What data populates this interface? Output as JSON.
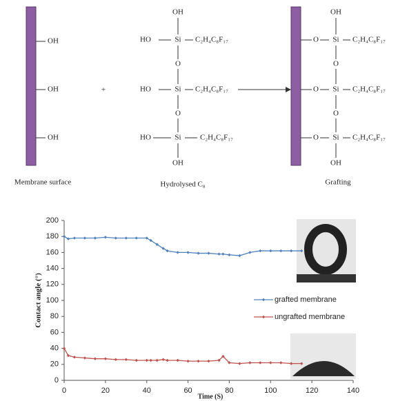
{
  "scheme": {
    "left": {
      "groups": [
        "OH",
        "OH",
        "OH"
      ],
      "label": "Membrane surface"
    },
    "plus": "+",
    "middle": {
      "top": "OH",
      "bottom": "OH",
      "bridges": [
        "O",
        "O"
      ],
      "rows": [
        {
          "end": "HO",
          "si": "Si",
          "chain": "C₂H₄C₈F₁₇"
        },
        {
          "end": "HO",
          "si": "Si",
          "chain": "C₂H₄C₈F₁₇"
        },
        {
          "end": "HO",
          "si": "Si",
          "chain": "C₂H₄C₈F₁₇"
        }
      ],
      "label": "Hydrolysed C₈"
    },
    "right": {
      "top": "OH",
      "bottom": "OH",
      "bridges": [
        "O",
        "O"
      ],
      "rows": [
        {
          "link": "O",
          "si": "Si",
          "chain": "C₂H₄C₈F₁₇"
        },
        {
          "link": "O",
          "si": "Si",
          "chain": "C₂H₄C₈F₁₇"
        },
        {
          "link": "O",
          "si": "Si",
          "chain": "C₂H₄C₈F₁₇"
        }
      ],
      "label": "Grafting"
    }
  },
  "chart_data": {
    "type": "line",
    "x_label": "Time (S)",
    "y_label": "Contact angle (°)",
    "x": [
      0,
      2,
      5,
      10,
      15,
      20,
      25,
      30,
      35,
      40,
      42,
      45,
      48,
      50,
      55,
      60,
      65,
      70,
      75,
      77,
      80,
      85,
      90,
      95,
      100,
      105,
      110,
      115
    ],
    "series": [
      {
        "name": "grafted membrane",
        "color": "#4f81bd",
        "values": [
          180,
          177,
          178,
          178,
          178,
          179,
          178,
          178,
          178,
          178,
          175,
          170,
          165,
          162,
          160,
          160,
          159,
          159,
          158,
          158,
          157,
          156,
          160,
          162,
          162,
          162,
          162,
          162
        ]
      },
      {
        "name": "ungrafted membrane",
        "color": "#c0504d",
        "values": [
          40,
          31,
          29,
          28,
          27,
          27,
          26,
          26,
          25,
          25,
          25,
          25,
          26,
          25,
          25,
          24,
          24,
          24,
          25,
          30,
          22,
          21,
          22,
          22,
          22,
          22,
          21,
          21
        ]
      }
    ],
    "xlim": [
      0,
      140
    ],
    "xticks": [
      0,
      20,
      40,
      60,
      80,
      100,
      120,
      140
    ],
    "ylim": [
      0,
      200
    ],
    "yticks": [
      0,
      20,
      40,
      60,
      80,
      100,
      120,
      140,
      160,
      180,
      200
    ],
    "legend": "right"
  }
}
